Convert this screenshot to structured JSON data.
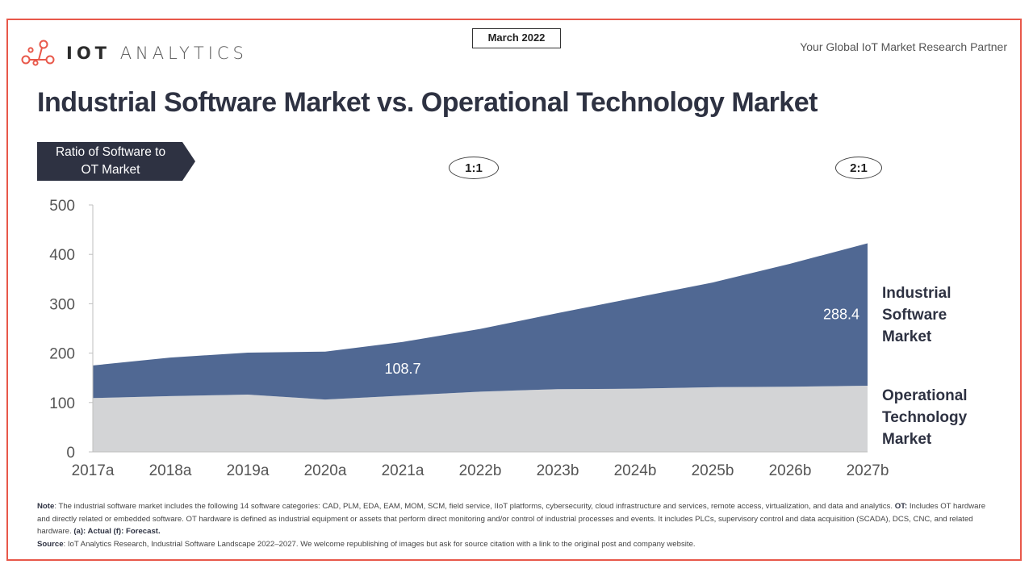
{
  "header": {
    "logo_text_bold": "IOT",
    "logo_text_light": "ANALYTICS",
    "date_badge": "March 2022",
    "tagline": "Your Global IoT Market Research Partner",
    "title": "Industrial Software Market vs. Operational Technology Market",
    "brand_color": "#e8584a"
  },
  "ratio": {
    "label_line1": "Ratio of Software to",
    "label_line2": "OT Market",
    "markers": [
      {
        "year": "2021a",
        "text": "1:1"
      },
      {
        "year": "2027b",
        "text": "2:1"
      }
    ]
  },
  "legend": {
    "software": [
      "Industrial",
      "Software",
      "Market"
    ],
    "ot": [
      "Operational",
      "Technology",
      "Market"
    ]
  },
  "footnote": {
    "note_label": "Note",
    "note_text": ": The industrial software market includes the following 14 software categories: CAD, PLM, EDA, EAM, MOM, SCM, field service, IIoT platforms, cybersecurity, cloud infrastructure and services, remote access, virtualization, and data and analytics. ",
    "ot_label": "OT:",
    "ot_text": " Includes OT hardware and directly related or embedded software. OT hardware is defined as industrial equipment or assets that perform direct monitoring and/or control of industrial processes and events. It includes PLCs, supervisory control and data acquisition (SCADA), DCS, CNC, and related hardware. ",
    "legend_note": "(a): Actual (f): Forecast.",
    "source_label": "Source",
    "source_text": ": IoT Analytics Research, Industrial Software Landscape 2022–2027. We welcome republishing of images but ask for source citation with a link to the original post and company website."
  },
  "chart_data": {
    "type": "area",
    "stacked": true,
    "title": "Industrial Software Market vs. Operational Technology Market",
    "xlabel": "",
    "ylabel": "",
    "ylim": [
      0,
      500
    ],
    "yticks": [
      0,
      100,
      200,
      300,
      400,
      500
    ],
    "grid": false,
    "categories": [
      "2017a",
      "2018a",
      "2019a",
      "2020a",
      "2021a",
      "2022b",
      "2023b",
      "2024b",
      "2025b",
      "2026b",
      "2027b"
    ],
    "series": [
      {
        "name": "Operational Technology Market",
        "color": "#d3d4d6",
        "values": [
          109,
          113,
          116,
          106,
          114,
          122,
          127,
          128,
          131,
          132,
          134
        ]
      },
      {
        "name": "Industrial Software Market",
        "color": "#506893",
        "values": [
          66,
          78,
          85,
          97,
          108.7,
          127,
          154,
          184,
          212,
          249,
          288.4
        ]
      }
    ],
    "data_labels": [
      {
        "series": "Industrial Software Market",
        "category": "2021a",
        "text": "108.7"
      },
      {
        "series": "Industrial Software Market",
        "category": "2027b",
        "text": "288.4"
      }
    ],
    "legend": "right"
  }
}
